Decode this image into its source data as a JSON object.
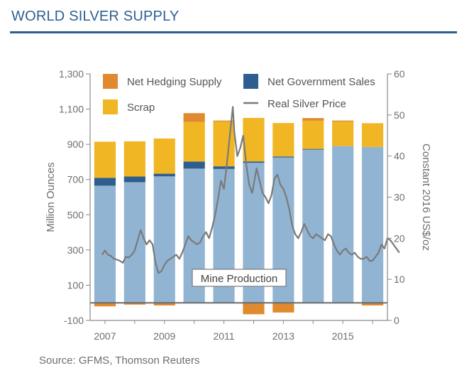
{
  "page": {
    "title": "WORLD SILVER SUPPLY",
    "source": "Source: GFMS, Thomson Reuters"
  },
  "chart_data": {
    "type": "bar",
    "title": "",
    "stacked": true,
    "categories": [
      "2007",
      "2008",
      "2009",
      "2010",
      "2011",
      "2012",
      "2013",
      "2014",
      "2015",
      "2016"
    ],
    "series": [
      {
        "name": "Mine Production",
        "color": "#92b4d3",
        "values": [
          665,
          685,
          718,
          762,
          760,
          795,
          825,
          870,
          890,
          885
        ]
      },
      {
        "name": "Net Government Sales",
        "color": "#2e5e8f",
        "values": [
          45,
          32,
          15,
          40,
          15,
          8,
          6,
          4,
          0,
          0
        ]
      },
      {
        "name": "Scrap",
        "color": "#f0b623",
        "values": [
          205,
          200,
          200,
          225,
          255,
          247,
          190,
          160,
          140,
          135
        ]
      },
      {
        "name": "Net  Hedging Supply",
        "color": "#e08a2f",
        "values": [
          -20,
          -10,
          -15,
          50,
          5,
          -65,
          -55,
          15,
          5,
          -15
        ]
      }
    ],
    "line_series": {
      "name": "Real Silver Price",
      "color": "#7a7a7a",
      "axis": "right",
      "points": [
        [
          2006.9,
          16.0
        ],
        [
          2007.0,
          17.0
        ],
        [
          2007.1,
          16.0
        ],
        [
          2007.2,
          15.7
        ],
        [
          2007.3,
          15.0
        ],
        [
          2007.4,
          14.8
        ],
        [
          2007.5,
          14.5
        ],
        [
          2007.6,
          14.0
        ],
        [
          2007.7,
          15.5
        ],
        [
          2007.8,
          15.3
        ],
        [
          2007.9,
          16.0
        ],
        [
          2008.0,
          17.0
        ],
        [
          2008.1,
          19.5
        ],
        [
          2008.2,
          22.0
        ],
        [
          2008.3,
          20.0
        ],
        [
          2008.4,
          18.5
        ],
        [
          2008.5,
          19.5
        ],
        [
          2008.6,
          18.5
        ],
        [
          2008.7,
          14.0
        ],
        [
          2008.8,
          11.5
        ],
        [
          2008.9,
          12.0
        ],
        [
          2009.0,
          13.5
        ],
        [
          2009.1,
          14.5
        ],
        [
          2009.2,
          15.0
        ],
        [
          2009.3,
          15.5
        ],
        [
          2009.4,
          16.0
        ],
        [
          2009.5,
          15.0
        ],
        [
          2009.6,
          16.5
        ],
        [
          2009.7,
          18.5
        ],
        [
          2009.8,
          20.5
        ],
        [
          2009.9,
          19.5
        ],
        [
          2010.0,
          19.0
        ],
        [
          2010.1,
          18.5
        ],
        [
          2010.2,
          19.0
        ],
        [
          2010.3,
          20.5
        ],
        [
          2010.4,
          21.5
        ],
        [
          2010.5,
          20.0
        ],
        [
          2010.6,
          22.5
        ],
        [
          2010.7,
          25.5
        ],
        [
          2010.8,
          29.5
        ],
        [
          2010.9,
          34.0
        ],
        [
          2011.0,
          32.0
        ],
        [
          2011.1,
          38.0
        ],
        [
          2011.2,
          45.0
        ],
        [
          2011.3,
          52.0
        ],
        [
          2011.35,
          46.0
        ],
        [
          2011.45,
          40.0
        ],
        [
          2011.55,
          42.0
        ],
        [
          2011.65,
          45.0
        ],
        [
          2011.75,
          38.0
        ],
        [
          2011.85,
          33.0
        ],
        [
          2011.95,
          31.0
        ],
        [
          2012.0,
          33.0
        ],
        [
          2012.1,
          37.0
        ],
        [
          2012.2,
          34.0
        ],
        [
          2012.3,
          31.0
        ],
        [
          2012.4,
          30.0
        ],
        [
          2012.5,
          28.5
        ],
        [
          2012.6,
          30.5
        ],
        [
          2012.7,
          34.5
        ],
        [
          2012.8,
          35.5
        ],
        [
          2012.9,
          33.0
        ],
        [
          2013.0,
          32.0
        ],
        [
          2013.1,
          30.0
        ],
        [
          2013.2,
          27.0
        ],
        [
          2013.3,
          23.0
        ],
        [
          2013.4,
          21.0
        ],
        [
          2013.5,
          20.0
        ],
        [
          2013.6,
          21.5
        ],
        [
          2013.7,
          23.5
        ],
        [
          2013.8,
          22.0
        ],
        [
          2013.9,
          20.5
        ],
        [
          2014.0,
          20.0
        ],
        [
          2014.1,
          21.0
        ],
        [
          2014.2,
          20.5
        ],
        [
          2014.3,
          20.0
        ],
        [
          2014.4,
          19.5
        ],
        [
          2014.5,
          21.0
        ],
        [
          2014.6,
          20.5
        ],
        [
          2014.7,
          18.5
        ],
        [
          2014.8,
          17.0
        ],
        [
          2014.9,
          16.0
        ],
        [
          2015.0,
          17.0
        ],
        [
          2015.1,
          17.5
        ],
        [
          2015.2,
          16.5
        ],
        [
          2015.3,
          16.0
        ],
        [
          2015.4,
          16.5
        ],
        [
          2015.5,
          15.5
        ],
        [
          2015.6,
          15.0
        ],
        [
          2015.7,
          15.0
        ],
        [
          2015.8,
          15.5
        ],
        [
          2015.9,
          14.5
        ],
        [
          2016.0,
          14.5
        ],
        [
          2016.1,
          15.5
        ],
        [
          2016.2,
          16.5
        ],
        [
          2016.3,
          18.5
        ],
        [
          2016.4,
          17.5
        ],
        [
          2016.5,
          20.0
        ],
        [
          2016.6,
          19.5
        ],
        [
          2016.7,
          18.5
        ],
        [
          2016.8,
          17.5
        ],
        [
          2016.9,
          16.5
        ]
      ]
    },
    "xlabel": "",
    "xlim": [
      2006.5,
      2016.5
    ],
    "x_ticks": [
      "2007",
      "2009",
      "2011",
      "2013",
      "2015"
    ],
    "x_tick_values": [
      2007,
      2009,
      2011,
      2013,
      2015
    ],
    "ylabel": "Million Ounces",
    "ylim": [
      -100,
      1300
    ],
    "y_ticks": [
      "-100",
      "100",
      "300",
      "500",
      "700",
      "900",
      "1,100",
      "1,300"
    ],
    "y_tick_values": [
      -100,
      100,
      300,
      500,
      700,
      900,
      1100,
      1300
    ],
    "y2label": "Constant 2016 US$/oz",
    "y2lim": [
      0,
      60
    ],
    "y2_ticks": [
      "0",
      "10",
      "20",
      "30",
      "40",
      "50",
      "60"
    ],
    "y2_tick_values": [
      0,
      10,
      20,
      30,
      40,
      50,
      60
    ],
    "zero_line_color": "#6b6b6b",
    "annotation": {
      "text": "Mine Production"
    },
    "legend": {
      "placement": "top",
      "entries": [
        {
          "label": "Net  Hedging Supply",
          "kind": "swatch",
          "color": "#e08a2f"
        },
        {
          "label": "Net Government Sales",
          "kind": "swatch",
          "color": "#2e5e8f"
        },
        {
          "label": "Scrap",
          "kind": "swatch",
          "color": "#f0b623"
        },
        {
          "label": "Real Silver Price",
          "kind": "line",
          "color": "#7a7a7a"
        }
      ]
    },
    "grid": false
  }
}
